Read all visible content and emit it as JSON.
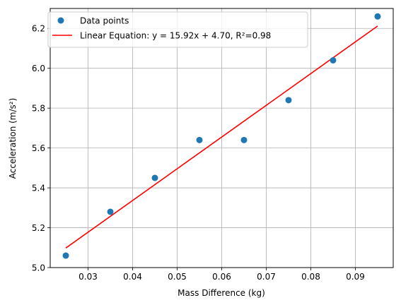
{
  "chart_data": {
    "type": "scatter",
    "xlabel": "Mass Difference (kg)",
    "ylabel": "Acceleration (m/s²)",
    "xlim": [
      0.0215,
      0.0985
    ],
    "ylim": [
      5.0,
      6.3
    ],
    "grid": true,
    "legend_position": "top-left",
    "x_ticks": [
      0.03,
      0.04,
      0.05,
      0.06,
      0.07,
      0.08,
      0.09
    ],
    "x_tick_labels": [
      "0.03",
      "0.04",
      "0.05",
      "0.06",
      "0.07",
      "0.08",
      "0.09"
    ],
    "y_ticks": [
      5.0,
      5.2,
      5.4,
      5.6,
      5.8,
      6.0,
      6.2
    ],
    "y_tick_labels": [
      "5.0",
      "5.2",
      "5.4",
      "5.6",
      "5.8",
      "6.0",
      "6.2"
    ],
    "series": [
      {
        "name": "Data points",
        "kind": "scatter",
        "color": "#1f77b4",
        "x": [
          0.025,
          0.035,
          0.045,
          0.055,
          0.065,
          0.075,
          0.085,
          0.095
        ],
        "y": [
          5.06,
          5.28,
          5.45,
          5.64,
          5.64,
          5.84,
          6.04,
          6.26
        ]
      },
      {
        "name": "Linear Equation: y = 15.92x + 4.70,  R²=0.98",
        "kind": "line",
        "color": "#ff0000",
        "x": [
          0.025,
          0.095
        ],
        "y": [
          5.098,
          6.212
        ]
      }
    ]
  }
}
